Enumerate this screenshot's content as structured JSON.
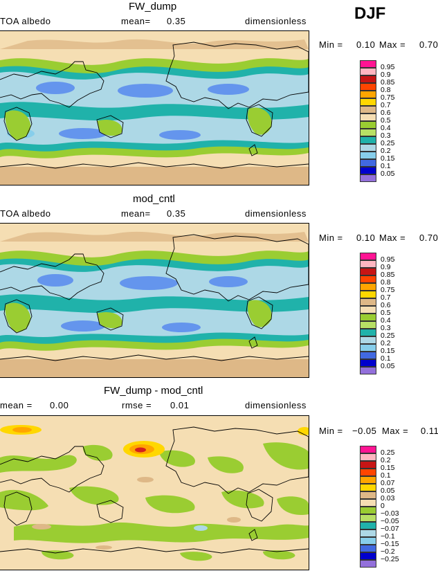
{
  "season": "DJF",
  "panels": [
    {
      "title": "FW_dump",
      "left_label": "TOA albedo",
      "mean_label": "mean=",
      "mean_value": "0.35",
      "units": "dimensionless",
      "min_label": "Min =",
      "min_value": "0.10",
      "max_label": "Max =",
      "max_value": "0.70",
      "legend": [
        "0.95",
        "0.9",
        "0.85",
        "0.8",
        "0.75",
        "0.7",
        "0.6",
        "0.5",
        "0.4",
        "0.3",
        "0.25",
        "0.2",
        "0.15",
        "0.1",
        "0.05"
      ]
    },
    {
      "title": "mod_cntl",
      "left_label": "TOA albedo",
      "mean_label": "mean=",
      "mean_value": "0.35",
      "units": "dimensionless",
      "min_label": "Min =",
      "min_value": "0.10",
      "max_label": "Max =",
      "max_value": "0.70",
      "legend": [
        "0.95",
        "0.9",
        "0.85",
        "0.8",
        "0.75",
        "0.7",
        "0.6",
        "0.5",
        "0.4",
        "0.3",
        "0.25",
        "0.2",
        "0.15",
        "0.1",
        "0.05"
      ]
    },
    {
      "title": "FW_dump - mod_cntl",
      "left_label": "mean =",
      "left_value": "0.00",
      "mean_label": "rmse =",
      "mean_value": "0.01",
      "units": "dimensionless",
      "min_label": "Min =",
      "min_value": "−0.05",
      "max_label": "Max =",
      "max_value": "0.11",
      "legend": [
        "0.25",
        "0.2",
        "0.15",
        "0.1",
        "0.07",
        "0.05",
        "0.03",
        "0",
        "−0.03",
        "−0.05",
        "−0.07",
        "−0.1",
        "−0.15",
        "−0.2",
        "−0.25"
      ]
    }
  ],
  "colors": {
    "scale": [
      "#ff1493",
      "#ffb6c1",
      "#d32020",
      "#ff4500",
      "#ff8c00",
      "#ffd700",
      "#deb887",
      "#f5deb3",
      "#9acd32",
      "#b8e065",
      "#20b2aa",
      "#add8e6",
      "#87ceeb",
      "#6495ed",
      "#4169e1",
      "#0000cd",
      "#9370db"
    ]
  }
}
